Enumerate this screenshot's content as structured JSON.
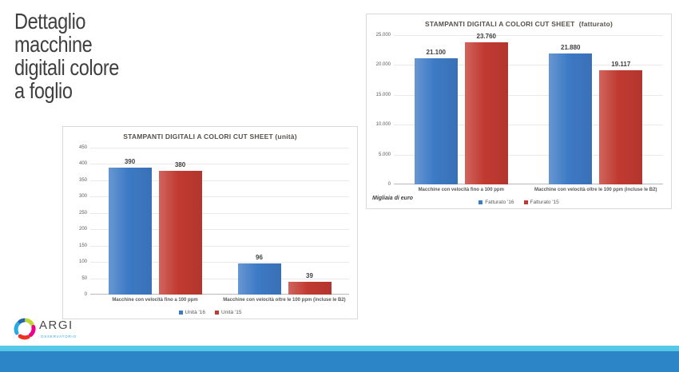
{
  "slide": {
    "title_lines": [
      "Dettaglio",
      "macchine",
      "digitali colore",
      "a foglio"
    ],
    "logo": {
      "text": "ARGI",
      "subtext": "OSSERVATORIO"
    }
  },
  "colors": {
    "series_blue": "#3D7AC5",
    "series_red": "#C13A31",
    "footer_strip_cyan": "#55C8E8",
    "footer_band_blue": "#2B85C6",
    "logo_cyan": "#29ABE2",
    "logo_dark_blue": "#2566AF",
    "logo_green": "#BFD730",
    "logo_magenta": "#EC008C",
    "logo_red": "#EE3124"
  },
  "chart_data": [
    {
      "type": "bar",
      "title": "STAMPANTI DIGITALI A COLORI CUT SHEET (unità)",
      "categories": [
        "Macchine con velocità fino a 100 ppm",
        "Macchine con velocità oltre le 100 ppm (incluse le B2)"
      ],
      "series": [
        {
          "name": "Unità '16",
          "color": "#3D7AC5",
          "values": [
            390,
            96
          ],
          "labels": [
            "390",
            "96"
          ]
        },
        {
          "name": "Unità '15",
          "color": "#C13A31",
          "values": [
            380,
            39
          ],
          "labels": [
            "380",
            "39"
          ]
        }
      ],
      "xlabel": "",
      "ylabel": "",
      "ylim": [
        0,
        450
      ],
      "yticks": [
        "450",
        "400",
        "350",
        "300",
        "250",
        "200",
        "150",
        "100",
        "50",
        "0"
      ],
      "grid": true,
      "legend_position": "bottom"
    },
    {
      "type": "bar",
      "title": "STAMPANTI DIGITALI A COLORI CUT SHEET  (fatturato)",
      "categories": [
        "Macchine con velocità fino a 100 ppm",
        "Macchine con velocità oltre le 100 ppm (incluse le B2)"
      ],
      "series": [
        {
          "name": "Fatturato '16",
          "color": "#3D7AC5",
          "values": [
            21100,
            21880
          ],
          "labels": [
            "21.100",
            "21.880"
          ]
        },
        {
          "name": "Fatturato '15",
          "color": "#C13A31",
          "values": [
            23760,
            19117
          ],
          "labels": [
            "23.760",
            "19.117"
          ]
        }
      ],
      "xlabel": "",
      "ylabel": "",
      "ylim": [
        0,
        25000
      ],
      "yticks": [
        "25.000",
        "20.000",
        "15.000",
        "10.000",
        "5.000",
        "0"
      ],
      "grid": true,
      "legend_position": "bottom",
      "note": "Migliaia di euro"
    }
  ]
}
